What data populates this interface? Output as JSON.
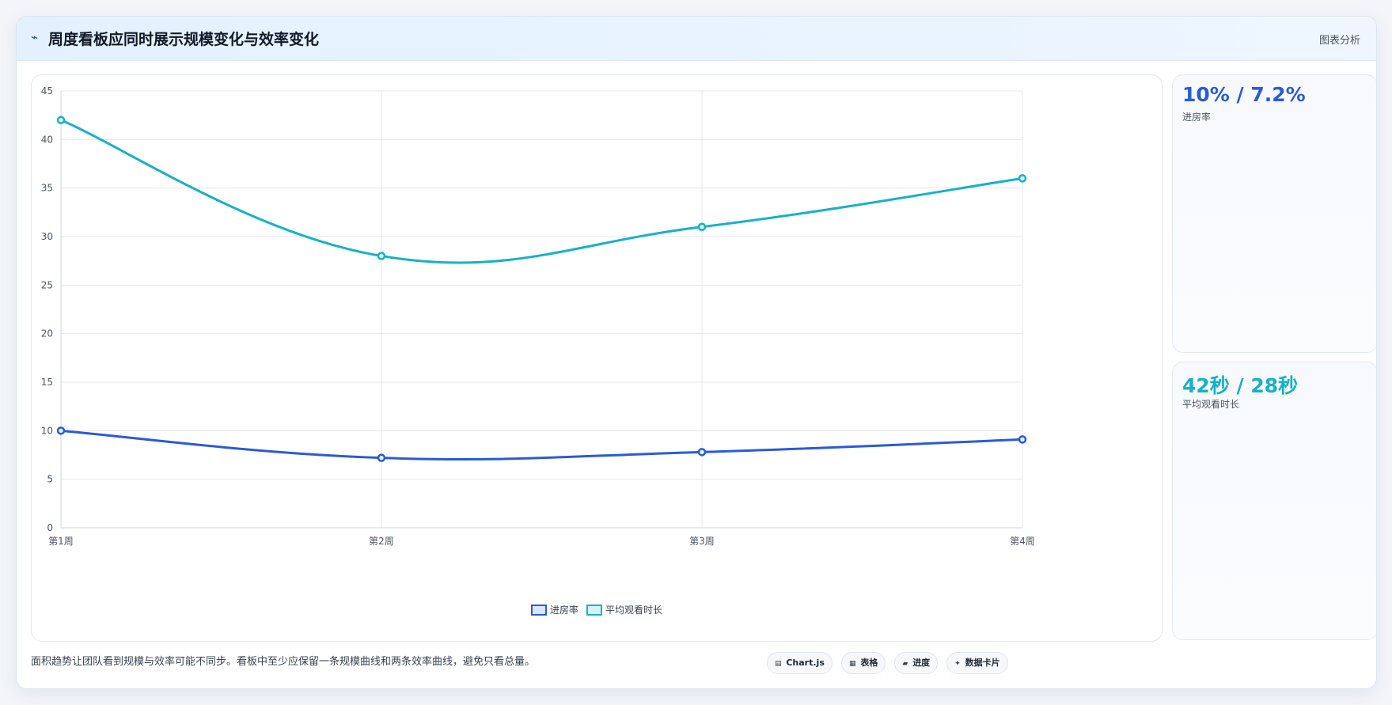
{
  "header": {
    "icon": "trend-line-icon",
    "icon_glyph": "⌁",
    "title": "周度看板应同时展示规模变化与效率变化",
    "action_label": "图表分析"
  },
  "chart_data": {
    "type": "line",
    "categories": [
      "第1周",
      "第2周",
      "第3周",
      "第4周"
    ],
    "series": [
      {
        "name": "进房率",
        "values": [
          10,
          7.2,
          7.8,
          9.1
        ],
        "color": "#2a5bd7"
      },
      {
        "name": "平均观看时长",
        "values": [
          42,
          28,
          31,
          36
        ],
        "color": "#16b1c8"
      }
    ],
    "ylim": [
      0,
      45
    ],
    "yticks": [
      0,
      5,
      10,
      15,
      20,
      25,
      30,
      35,
      40,
      45
    ],
    "grid": true,
    "legend_position": "bottom",
    "title": "",
    "xlabel": "",
    "ylabel": ""
  },
  "stats": [
    {
      "value": "10% / 7.2%",
      "label": "进房率",
      "color": "#2a5bd7"
    },
    {
      "value": "42秒 / 28秒",
      "label": "平均观看时长",
      "color": "#16b1c8"
    }
  ],
  "footer": {
    "note": "面积趋势让团队看到规模与效率可能不同步。看板中至少应保留一条规模曲线和两条效率曲线，避免只看总量。",
    "chips": [
      {
        "icon": "table-icon",
        "glyph": "▤",
        "label": "Chart.js"
      },
      {
        "icon": "grid-icon",
        "glyph": "▦",
        "label": "表格"
      },
      {
        "icon": "progress-icon",
        "glyph": "▰",
        "label": "进度"
      },
      {
        "icon": "sparkle-icon",
        "glyph": "✦",
        "label": "数据卡片"
      }
    ]
  }
}
